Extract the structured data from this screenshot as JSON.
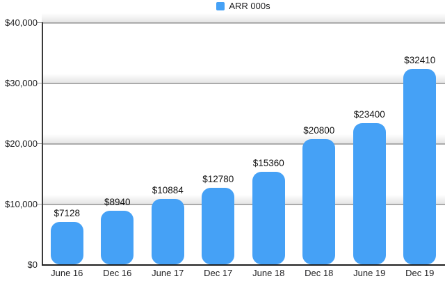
{
  "legend": {
    "label": "ARR 000s",
    "swatch_color": "#45a1f6"
  },
  "chart_data": {
    "type": "bar",
    "title": "",
    "series_name": "ARR 000s",
    "categories": [
      "June 16",
      "Dec 16",
      "June 17",
      "Dec 17",
      "June 18",
      "Dec 18",
      "June 19",
      "Dec 19"
    ],
    "values": [
      7128,
      8940,
      10884,
      12780,
      15360,
      20800,
      23400,
      32410
    ],
    "value_labels": [
      "$7128",
      "$8940",
      "$10884",
      "$12780",
      "$15360",
      "$20800",
      "$23400",
      "$32410"
    ],
    "xlabel": "",
    "ylabel": "",
    "ylim": [
      0,
      40000
    ],
    "ytick_interval": 10000,
    "ytick_labels": [
      "$0",
      "$10,000",
      "$20,000",
      "$30,000",
      "$40,000"
    ],
    "grid": true,
    "legend_position": "top-center",
    "bar_color": "#45a1f6",
    "gridline_color": "#ababab",
    "axis_color": "#1f1f1f",
    "text_color": "#1d1d1f"
  }
}
